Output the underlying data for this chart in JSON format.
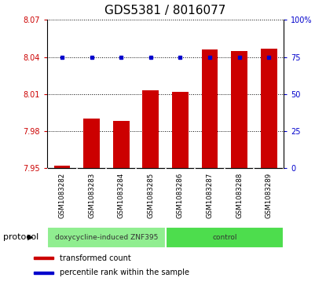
{
  "title": "GDS5381 / 8016077",
  "categories": [
    "GSM1083282",
    "GSM1083283",
    "GSM1083284",
    "GSM1083285",
    "GSM1083286",
    "GSM1083287",
    "GSM1083288",
    "GSM1083289"
  ],
  "bar_values": [
    7.952,
    7.99,
    7.988,
    8.013,
    8.012,
    8.046,
    8.045,
    8.047
  ],
  "dot_values": [
    75,
    75,
    75,
    75,
    75,
    75,
    75,
    75
  ],
  "ylim_left": [
    7.95,
    8.07
  ],
  "ylim_right": [
    0,
    100
  ],
  "yticks_left": [
    7.95,
    7.98,
    8.01,
    8.04,
    8.07
  ],
  "yticks_right": [
    0,
    25,
    50,
    75,
    100
  ],
  "bar_color": "#cc0000",
  "dot_color": "#0000cc",
  "bar_base": 7.95,
  "protocol_groups": [
    {
      "label": "doxycycline-induced ZNF395",
      "start": 0,
      "end": 4,
      "color": "#90ee90"
    },
    {
      "label": "control",
      "start": 4,
      "end": 8,
      "color": "#4ddd4d"
    }
  ],
  "protocol_label": "protocol",
  "legend_items": [
    {
      "color": "#cc0000",
      "label": "transformed count"
    },
    {
      "color": "#0000cc",
      "label": "percentile rank within the sample"
    }
  ],
  "title_fontsize": 11,
  "axis_label_color_left": "#cc0000",
  "axis_label_color_right": "#0000cc",
  "xlabel_bg_color": "#c8c8c8",
  "xlabel_sep_color": "#ffffff",
  "figsize": [
    4.15,
    3.63
  ],
  "dpi": 100
}
